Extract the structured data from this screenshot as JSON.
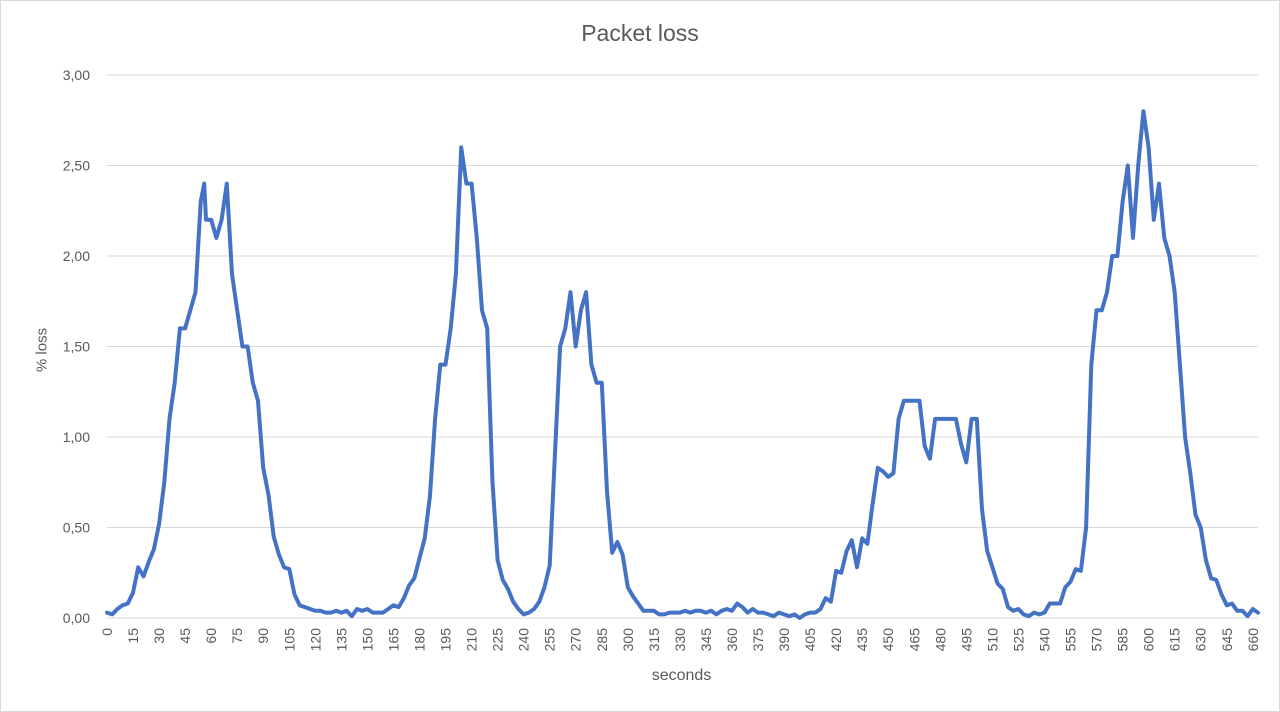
{
  "chart_data": {
    "type": "line",
    "title": "Packet loss",
    "xlabel": "seconds",
    "ylabel": "% loss",
    "ylim": [
      0,
      3
    ],
    "yticks": [
      0,
      0.5,
      1,
      1.5,
      2,
      2.5,
      3
    ],
    "ytick_labels": [
      "0,00",
      "0,50",
      "1,00",
      "1,50",
      "2,00",
      "2,50",
      "3,00"
    ],
    "xlim": [
      0,
      663
    ],
    "xticks": [
      0,
      15,
      30,
      45,
      60,
      75,
      90,
      105,
      120,
      135,
      150,
      165,
      180,
      195,
      210,
      225,
      240,
      255,
      270,
      285,
      300,
      315,
      330,
      345,
      360,
      375,
      390,
      405,
      420,
      435,
      450,
      465,
      480,
      495,
      510,
      525,
      540,
      555,
      570,
      585,
      600,
      615,
      630,
      645,
      660
    ],
    "grid": "horizontal",
    "line_color": "#4472c4",
    "series": [
      {
        "x": [
          0,
          3,
          6,
          9,
          12,
          15,
          18,
          21,
          24,
          27,
          30,
          33,
          36,
          39,
          42,
          45,
          48,
          51,
          54,
          56,
          57,
          60,
          63,
          66,
          69,
          72,
          75,
          78,
          81,
          84,
          87,
          90,
          93,
          96,
          99,
          102,
          105,
          108,
          111,
          114,
          117,
          120,
          123,
          126,
          129,
          132,
          135,
          138,
          141,
          144,
          147,
          150,
          153,
          156,
          159,
          162,
          165,
          168,
          171,
          174,
          177,
          180,
          183,
          186,
          189,
          192,
          195,
          198,
          201,
          204,
          207,
          210,
          213,
          216,
          219,
          222,
          225,
          228,
          231,
          234,
          237,
          240,
          243,
          246,
          249,
          252,
          255,
          258,
          261,
          264,
          267,
          270,
          273,
          276,
          279,
          282,
          285,
          288,
          291,
          294,
          297,
          300,
          303,
          306,
          309,
          312,
          315,
          318,
          321,
          324,
          327,
          330,
          333,
          336,
          339,
          342,
          345,
          348,
          351,
          354,
          357,
          360,
          363,
          366,
          369,
          372,
          375,
          378,
          381,
          384,
          387,
          390,
          393,
          396,
          399,
          402,
          405,
          408,
          411,
          414,
          417,
          420,
          423,
          426,
          429,
          432,
          435,
          438,
          441,
          444,
          447,
          450,
          453,
          456,
          459,
          462,
          465,
          468,
          471,
          474,
          477,
          480,
          483,
          486,
          489,
          492,
          495,
          498,
          501,
          504,
          507,
          510,
          513,
          516,
          519,
          522,
          525,
          528,
          531,
          534,
          537,
          540,
          543,
          546,
          549,
          552,
          555,
          558,
          561,
          564,
          567,
          570,
          573,
          576,
          579,
          582,
          585,
          588,
          591,
          594,
          597,
          600,
          603,
          606,
          609,
          612,
          615,
          618,
          621,
          624,
          627,
          630,
          633,
          636,
          639,
          642,
          645,
          648,
          651,
          654,
          657,
          660,
          663
        ],
        "values": [
          0.03,
          0.02,
          0.05,
          0.07,
          0.08,
          0.14,
          0.28,
          0.23,
          0.31,
          0.38,
          0.52,
          0.75,
          1.1,
          1.3,
          1.6,
          1.6,
          1.7,
          1.8,
          2.3,
          2.4,
          2.2,
          2.2,
          2.1,
          2.2,
          2.4,
          1.9,
          1.7,
          1.5,
          1.5,
          1.3,
          1.2,
          0.83,
          0.68,
          0.45,
          0.35,
          0.28,
          0.27,
          0.13,
          0.07,
          0.06,
          0.05,
          0.04,
          0.04,
          0.03,
          0.03,
          0.04,
          0.03,
          0.04,
          0.01,
          0.05,
          0.04,
          0.05,
          0.03,
          0.03,
          0.03,
          0.05,
          0.07,
          0.06,
          0.11,
          0.18,
          0.22,
          0.33,
          0.44,
          0.67,
          1.1,
          1.4,
          1.4,
          1.6,
          1.9,
          2.6,
          2.4,
          2.4,
          2.1,
          1.7,
          1.6,
          0.76,
          0.32,
          0.21,
          0.16,
          0.09,
          0.05,
          0.02,
          0.03,
          0.05,
          0.09,
          0.17,
          0.29,
          0.9,
          1.5,
          1.6,
          1.8,
          1.5,
          1.7,
          1.8,
          1.4,
          1.3,
          1.3,
          0.7,
          0.36,
          0.42,
          0.35,
          0.17,
          0.12,
          0.08,
          0.04,
          0.04,
          0.04,
          0.02,
          0.02,
          0.03,
          0.03,
          0.03,
          0.04,
          0.03,
          0.04,
          0.04,
          0.03,
          0.04,
          0.02,
          0.04,
          0.05,
          0.04,
          0.08,
          0.06,
          0.03,
          0.05,
          0.03,
          0.03,
          0.02,
          0.01,
          0.03,
          0.02,
          0.01,
          0.02,
          0.0,
          0.02,
          0.03,
          0.03,
          0.05,
          0.11,
          0.09,
          0.26,
          0.25,
          0.37,
          0.43,
          0.28,
          0.44,
          0.41,
          0.63,
          0.83,
          0.81,
          0.78,
          0.8,
          1.1,
          1.2,
          1.2,
          1.2,
          1.2,
          0.95,
          0.88,
          1.1,
          1.1,
          1.1,
          1.1,
          1.1,
          0.96,
          0.86,
          1.1,
          1.1,
          0.6,
          0.37,
          0.28,
          0.19,
          0.16,
          0.06,
          0.04,
          0.05,
          0.02,
          0.01,
          0.03,
          0.02,
          0.03,
          0.08,
          0.08,
          0.08,
          0.17,
          0.2,
          0.27,
          0.26,
          0.5,
          1.4,
          1.7,
          1.7,
          1.8,
          2.0,
          2.0,
          2.3,
          2.5,
          2.1,
          2.5,
          2.8,
          2.6,
          2.2,
          2.4,
          2.1,
          2.0,
          1.8,
          1.4,
          1.0,
          0.8,
          0.57,
          0.5,
          0.32,
          0.22,
          0.21,
          0.13,
          0.07,
          0.08,
          0.04,
          0.04,
          0.01,
          0.05,
          0.03
        ]
      }
    ]
  }
}
